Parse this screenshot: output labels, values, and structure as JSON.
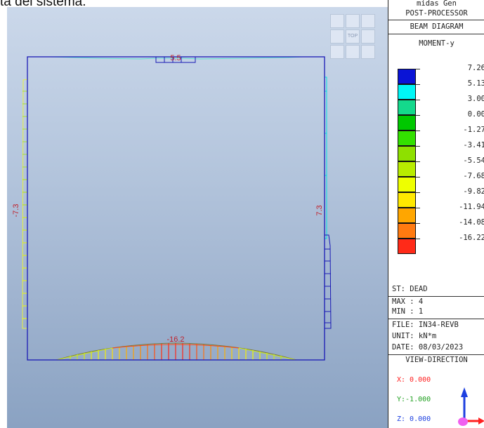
{
  "caption": "ta del sistema.",
  "legend": {
    "title": "midas Gen",
    "subtitle": "POST-PROCESSOR",
    "diagram_type": "BEAM DIAGRAM",
    "component": "MOMENT-y",
    "scale_values": [
      "7.26",
      "5.13",
      "3.00",
      "0.00",
      "-1.27",
      "-3.41",
      "-5.54",
      "-7.68",
      "-9.82",
      "-11.94",
      "-14.08",
      "-16.22"
    ],
    "scale_colors": [
      "#0a14d6",
      "#00f6f6",
      "#14d98c",
      "#00c800",
      "#33e000",
      "#8ee000",
      "#b8ec00",
      "#eeff00",
      "#ffe800",
      "#ffa600",
      "#ff7a10",
      "#ff2a18"
    ],
    "load_case": "ST: DEAD",
    "max": "MAX : 4",
    "min": "MIN : 1",
    "file": "FILE: IN34-REVB",
    "unit": "UNIT: kN*m",
    "date": "DATE: 08/03/2023",
    "view_direction_label": "VIEW-DIRECTION",
    "view_x": "X: 0.000",
    "view_y": "Y:-1.000",
    "view_z": "Z: 0.000",
    "axis_colors": {
      "x": "#ff2020",
      "y": "#20a020",
      "z": "#1e40e0"
    }
  },
  "viewcube": {
    "face_label": "TOP"
  },
  "diagram": {
    "top_beam_label": "5.5",
    "bottom_beam_label": "-16.2",
    "left_column_label": "-7.3",
    "right_column_label": "7.3",
    "frame_color": "#1a1ab4",
    "label_color": "#c0202a"
  }
}
